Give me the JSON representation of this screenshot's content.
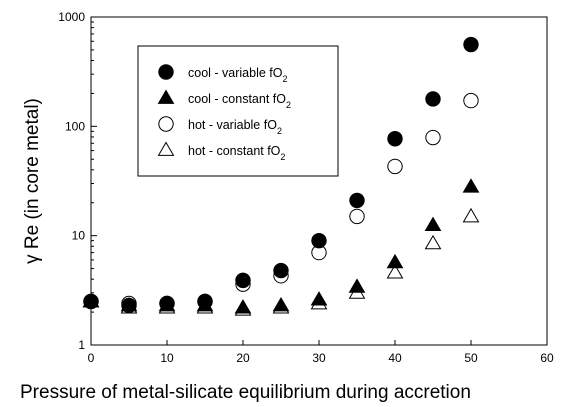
{
  "chart_data": {
    "type": "scatter",
    "title": "",
    "xlabel": "Pressure of metal-silicate equilibrium during accretion",
    "ylabel": "γ Re (in core metal)",
    "xlim": [
      0,
      60
    ],
    "ylim": [
      1,
      1000
    ],
    "yscale": "log",
    "xticks": [
      "0",
      "10",
      "20",
      "30",
      "40",
      "50",
      "60"
    ],
    "yticks": [
      "1",
      "10",
      "100",
      "1000"
    ],
    "grid": false,
    "legend_position": "top-left",
    "series": [
      {
        "name": "cool - variable fO2",
        "marker": "filled-circle",
        "x": [
          0,
          5,
          10,
          15,
          20,
          25,
          30,
          35,
          40,
          45,
          50
        ],
        "y": [
          2.5,
          2.3,
          2.4,
          2.5,
          3.9,
          4.8,
          9.0,
          21,
          77,
          178,
          560
        ]
      },
      {
        "name": "cool - constant fO2",
        "marker": "filled-triangle",
        "x": [
          0,
          5,
          10,
          15,
          20,
          25,
          30,
          35,
          40,
          45,
          50
        ],
        "y": [
          2.5,
          2.3,
          2.3,
          2.3,
          2.2,
          2.3,
          2.6,
          3.4,
          5.7,
          12.5,
          28
        ]
      },
      {
        "name": "hot - variable fO2",
        "marker": "open-circle",
        "x": [
          0,
          5,
          10,
          15,
          20,
          25,
          30,
          35,
          40,
          45,
          50
        ],
        "y": [
          2.5,
          2.4,
          2.4,
          2.5,
          3.6,
          4.3,
          7.0,
          15,
          43,
          79,
          172
        ]
      },
      {
        "name": "hot - constant fO2",
        "marker": "open-triangle",
        "x": [
          0,
          5,
          10,
          15,
          20,
          25,
          30,
          35,
          40,
          45,
          50
        ],
        "y": [
          2.5,
          2.2,
          2.2,
          2.2,
          2.1,
          2.2,
          2.4,
          3.0,
          4.6,
          8.5,
          15
        ]
      }
    ]
  }
}
